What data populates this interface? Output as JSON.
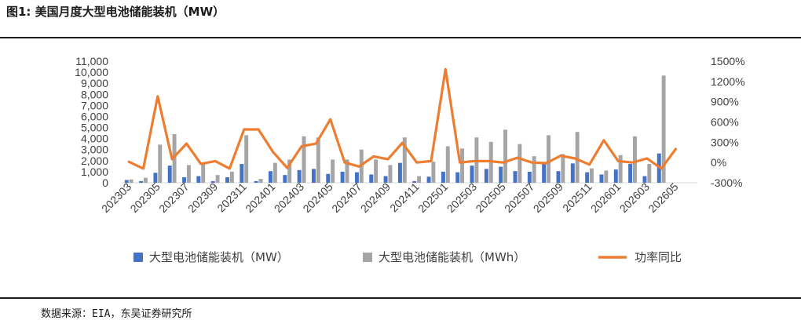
{
  "header": {
    "title": "图1:  美国月度大型电池储能装机（MW）"
  },
  "footer": {
    "source": "数据来源：EIA，东吴证券研究所"
  },
  "colors": {
    "mw": "#4472C4",
    "mwh": "#A5A5A5",
    "yoy": "#ED7D31",
    "axis": "#D9D9D9",
    "text": "#404040"
  },
  "chart_data": {
    "type": "bar",
    "x": [
      "202303",
      "202304",
      "202305",
      "202306",
      "202307",
      "202308",
      "202309",
      "202310",
      "202311",
      "202312",
      "202401",
      "202402",
      "202403",
      "202404",
      "202405",
      "202406",
      "202407",
      "202408",
      "202409",
      "202410",
      "202411",
      "202412",
      "202501",
      "202502",
      "202503",
      "202504",
      "202505",
      "202506",
      "202507",
      "202508",
      "202509",
      "202510",
      "202511",
      "202512",
      "202601",
      "202602",
      "202603",
      "202604",
      "202605",
      "202606"
    ],
    "x_tick_labels": [
      "202303",
      "202305",
      "202307",
      "202309",
      "202311",
      "202401",
      "202403",
      "202405",
      "202407",
      "202409",
      "202411",
      "202501",
      "202503",
      "202505",
      "202507",
      "202509",
      "202511",
      "202601",
      "202603",
      "202605"
    ],
    "series": [
      {
        "name": "大型电池储能装机（MW）",
        "type": "bar",
        "axis": "left",
        "values": [
          250,
          150,
          900,
          1550,
          500,
          600,
          150,
          500,
          1700,
          150,
          1050,
          700,
          1150,
          1250,
          800,
          1000,
          950,
          750,
          600,
          1800,
          150,
          550,
          1000,
          950,
          1550,
          1250,
          1450,
          1050,
          1000,
          1700,
          1050,
          1750,
          950,
          750,
          1200,
          1700,
          600,
          2650,
          0,
          0
        ]
      },
      {
        "name": "大型电池储能装机（MWh）",
        "type": "bar",
        "axis": "left",
        "values": [
          300,
          450,
          3450,
          4400,
          1600,
          1800,
          700,
          1000,
          4300,
          350,
          1800,
          2100,
          4200,
          4100,
          2100,
          2100,
          3000,
          2100,
          1600,
          4100,
          600,
          1900,
          3300,
          3100,
          4100,
          3700,
          4800,
          3500,
          2400,
          4300,
          2600,
          4600,
          1300,
          1100,
          2500,
          4200,
          1700,
          9700,
          0,
          0
        ]
      },
      {
        "name": "功率同比",
        "type": "line",
        "axis": "right",
        "values": [
          10,
          -90,
          980,
          50,
          280,
          -20,
          20,
          -90,
          490,
          490,
          160,
          -80,
          240,
          280,
          640,
          0,
          -60,
          90,
          50,
          290,
          0,
          20,
          1380,
          0,
          20,
          20,
          0,
          70,
          0,
          -10,
          100,
          60,
          -30,
          330,
          20,
          0,
          60,
          -90,
          200,
          null
        ]
      }
    ],
    "left_axis": {
      "ylim": [
        0,
        11000
      ],
      "ticks": [
        "0",
        "1,000",
        "2,000",
        "3,000",
        "4,000",
        "5,000",
        "6,000",
        "7,000",
        "8,000",
        "9,000",
        "10,000",
        "11,000"
      ]
    },
    "right_axis": {
      "ylim": [
        -300,
        1500
      ],
      "ticks": [
        "-300%",
        "0%",
        "300%",
        "600%",
        "900%",
        "1200%",
        "1500%"
      ]
    },
    "legend": {
      "position": "bottom",
      "items": [
        "大型电池储能装机（MW）",
        "大型电池储能装机（MWh）",
        "功率同比"
      ]
    },
    "grid": false
  }
}
